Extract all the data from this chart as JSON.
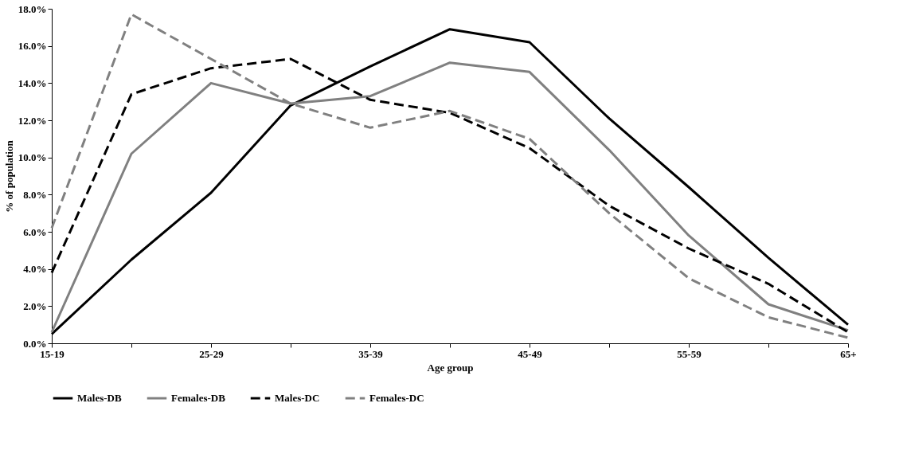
{
  "chart_data": {
    "type": "line",
    "xlabel": "Age group",
    "ylabel": "% of population",
    "categories": [
      "15-19",
      null,
      "25-29",
      null,
      "35-39",
      null,
      "45-49",
      null,
      "55-59",
      null,
      "65+"
    ],
    "series": [
      {
        "name": "Males-DB",
        "color": "#000000",
        "line_style": "solid",
        "values": [
          0.5,
          4.5,
          8.1,
          12.8,
          14.9,
          16.9,
          16.2,
          12.1,
          8.4,
          4.6,
          1.0
        ]
      },
      {
        "name": "Females-DB",
        "color": "#808080",
        "line_style": "solid",
        "values": [
          0.6,
          10.2,
          14.0,
          12.9,
          13.3,
          15.1,
          14.6,
          10.4,
          5.8,
          2.1,
          0.7
        ]
      },
      {
        "name": "Males-DC",
        "color": "#000000",
        "line_style": "dashed",
        "values": [
          3.8,
          13.4,
          14.8,
          15.3,
          13.1,
          12.4,
          10.5,
          7.4,
          5.1,
          3.2,
          0.6
        ]
      },
      {
        "name": "Females-DC",
        "color": "#808080",
        "line_style": "dashed",
        "values": [
          6.2,
          17.7,
          15.3,
          12.9,
          11.6,
          12.5,
          11.0,
          7.0,
          3.5,
          1.4,
          0.3
        ]
      }
    ],
    "ylim": [
      0,
      18
    ],
    "yticks": [
      {
        "value": 0,
        "label": "0.0%"
      },
      {
        "value": 2,
        "label": "2.0%"
      },
      {
        "value": 4,
        "label": "4.0%"
      },
      {
        "value": 6,
        "label": "6.0%"
      },
      {
        "value": 8,
        "label": "8.0%"
      },
      {
        "value": 10,
        "label": "10.0%"
      },
      {
        "value": 12,
        "label": "12.0%"
      },
      {
        "value": 14,
        "label": "14.0%"
      },
      {
        "value": 16,
        "label": "16.0%"
      },
      {
        "value": 18,
        "label": "18.0%"
      }
    ],
    "grid": false,
    "legend": "bottom",
    "marker": "none"
  }
}
